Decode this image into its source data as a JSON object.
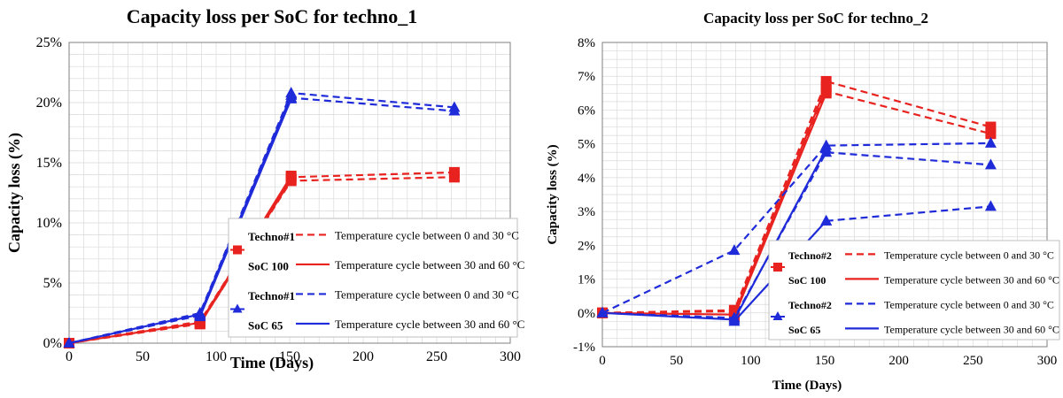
{
  "chart_data": [
    {
      "type": "line",
      "title": "Capacity loss per SoC for techno_1",
      "xlabel": "Time (Days)",
      "ylabel": "Capacity loss (%)",
      "xlim": [
        0,
        300
      ],
      "ylim": [
        0,
        25
      ],
      "xticks": [
        "0",
        "50",
        "100",
        "150",
        "200",
        "250",
        "300"
      ],
      "yticks": [
        "0%",
        "5%",
        "10%",
        "15%",
        "20%",
        "25%"
      ],
      "grid": true,
      "legend_position": "bottom-right",
      "legend_groups": [
        {
          "label_line1": "Techno#1",
          "label_line2": "SoC 100",
          "color": "#e8231f"
        },
        {
          "label_line1": "Techno#1",
          "label_line2": "SoC 65",
          "color": "#1f2bd9"
        }
      ],
      "legend_entries": {
        "cycle_0_30": "Temperature cycle between 0 and 30 °C",
        "cycle_30_60": "Temperature cycle between 30 and 60 °C"
      },
      "series": [
        {
          "group": 0,
          "style": "dashed",
          "marker": "square",
          "color": "#e8231f",
          "x": [
            0,
            89,
            151,
            262
          ],
          "y": [
            0.0,
            1.8,
            13.8,
            14.2
          ]
        },
        {
          "group": 0,
          "style": "dashed",
          "marker": "square",
          "color": "#e8231f",
          "x": [
            0,
            89,
            151,
            262
          ],
          "y": [
            0.0,
            1.6,
            13.5,
            13.8
          ]
        },
        {
          "group": 0,
          "style": "solid",
          "marker": "square",
          "color": "#e8231f",
          "x": [
            0,
            89,
            151
          ],
          "y": [
            0.0,
            1.7,
            13.9
          ]
        },
        {
          "group": 0,
          "style": "solid",
          "marker": "square",
          "color": "#e8231f",
          "x": [
            89,
            151
          ],
          "y": [
            1.6,
            13.6
          ]
        },
        {
          "group": 1,
          "style": "dashed",
          "marker": "triangle",
          "color": "#1f2bd9",
          "x": [
            0,
            89,
            151,
            262
          ],
          "y": [
            0.0,
            2.5,
            20.8,
            19.6
          ]
        },
        {
          "group": 1,
          "style": "dashed",
          "marker": "triangle",
          "color": "#1f2bd9",
          "x": [
            0,
            89,
            151,
            262
          ],
          "y": [
            0.0,
            2.3,
            20.4,
            19.3
          ]
        },
        {
          "group": 1,
          "style": "solid",
          "marker": "triangle",
          "color": "#1f2bd9",
          "x": [
            0,
            89,
            151
          ],
          "y": [
            0.0,
            2.4,
            20.6
          ]
        },
        {
          "group": 1,
          "style": "solid",
          "marker": "triangle",
          "color": "#1f2bd9",
          "x": [
            89,
            151
          ],
          "y": [
            2.2,
            20.3
          ]
        }
      ]
    },
    {
      "type": "line",
      "title": "Capacity loss per SoC for techno_2",
      "xlabel": "Time (Days)",
      "ylabel": "Capacity loss (%)",
      "xlim": [
        0,
        300
      ],
      "ylim": [
        -1,
        8
      ],
      "xticks": [
        "0",
        "50",
        "100",
        "150",
        "200",
        "250",
        "300"
      ],
      "yticks": [
        "-1%",
        "0%",
        "1%",
        "2%",
        "3%",
        "4%",
        "5%",
        "6%",
        "7%",
        "8%"
      ],
      "grid": true,
      "legend_position": "bottom-right",
      "legend_groups": [
        {
          "label_line1": "Techno#2",
          "label_line2": "SoC 100",
          "color": "#e8231f"
        },
        {
          "label_line1": "Techno#2",
          "label_line2": "SoC 65",
          "color": "#1f2bd9"
        }
      ],
      "legend_entries": {
        "cycle_0_30": "Temperature cycle between 0 and 30 °C",
        "cycle_30_60": "Temperature cycle between 30 and 60 °C"
      },
      "series": [
        {
          "group": 0,
          "style": "dashed",
          "marker": "square",
          "color": "#e8231f",
          "x": [
            0,
            89,
            151,
            262
          ],
          "y": [
            0.0,
            0.08,
            6.85,
            5.5
          ]
        },
        {
          "group": 0,
          "style": "dashed",
          "marker": "square",
          "color": "#e8231f",
          "x": [
            0,
            89,
            151,
            262
          ],
          "y": [
            0.0,
            0.05,
            6.55,
            5.3
          ]
        },
        {
          "group": 0,
          "style": "solid",
          "marker": "square",
          "color": "#e8231f",
          "x": [
            0,
            89,
            151
          ],
          "y": [
            0.0,
            -0.05,
            6.7
          ]
        },
        {
          "group": 0,
          "style": "solid",
          "marker": "square",
          "color": "#e8231f",
          "x": [
            89,
            151
          ],
          "y": [
            -0.1,
            6.5
          ]
        },
        {
          "group": 1,
          "style": "dashed",
          "marker": "triangle",
          "color": "#1f2bd9",
          "x": [
            0,
            89,
            151,
            262
          ],
          "y": [
            0.0,
            1.85,
            4.95,
            5.02
          ]
        },
        {
          "group": 1,
          "style": "dashed",
          "marker": "triangle",
          "color": "#1f2bd9",
          "x": [
            0,
            89,
            151,
            262
          ],
          "y": [
            0.0,
            -0.15,
            4.75,
            4.38
          ]
        },
        {
          "group": 1,
          "style": "dashed",
          "marker": "triangle",
          "color": "#1f2bd9",
          "x": [
            151,
            262
          ],
          "y": [
            2.72,
            3.15
          ]
        },
        {
          "group": 1,
          "style": "solid",
          "marker": "triangle",
          "color": "#1f2bd9",
          "x": [
            0,
            89,
            151
          ],
          "y": [
            0.0,
            -0.2,
            4.85
          ]
        },
        {
          "group": 1,
          "style": "solid",
          "marker": "triangle",
          "color": "#1f2bd9",
          "x": [
            89,
            151
          ],
          "y": [
            -0.25,
            2.72
          ]
        }
      ]
    }
  ]
}
